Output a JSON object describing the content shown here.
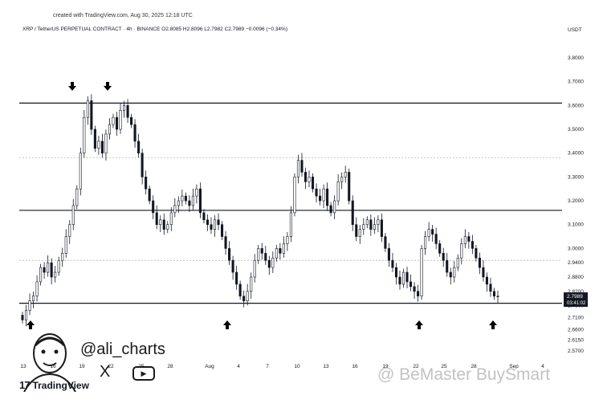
{
  "header": {
    "created": "created with TradingView.com, Aug 30, 2025 12:18 UTC",
    "symbol_line": "XRP / TetherUS PERPETUAL CONTRACT · 4h · BINANCE  O2.8085  H2.8096  L2.7982  C2.7989  −0.0096 (−0.34%)",
    "currency": "USDT"
  },
  "branding": {
    "logo_mark": "17",
    "logo_text": "TradingView",
    "handle": "@ali_charts",
    "x_label": "X",
    "watermark": "@ BeMaster BuySmart"
  },
  "colors": {
    "candle": "#131722",
    "grid": "#9a9a9a",
    "level": "#131722",
    "price_label_bg": "#131722"
  },
  "chart_data": {
    "type": "candlestick",
    "symbol": "XRP / TetherUS PERPETUAL CONTRACT",
    "interval": "4h",
    "exchange": "BINANCE",
    "ohlc_last": {
      "open": 2.8085,
      "high": 2.8096,
      "low": 2.7982,
      "close": 2.7989,
      "change": -0.0096,
      "change_pct": -0.34
    },
    "y_ticks": [
      3.8,
      3.7,
      3.6,
      3.5,
      3.4,
      3.3,
      3.2,
      3.1,
      3.0,
      2.94,
      2.88,
      2.82,
      2.76,
      2.71,
      2.66,
      2.615,
      2.57
    ],
    "y_tick_labels": [
      "3.8000",
      "3.7000",
      "3.6000",
      "3.5000",
      "3.4000",
      "3.3000",
      "3.2000",
      "3.1000",
      "3.0000",
      "2.9400",
      "2.8800",
      "2.8200",
      "2.7600",
      "2.7100",
      "2.6600",
      "2.6150",
      "2.5700"
    ],
    "x_tick_labels": [
      "13",
      "16",
      "19",
      "22",
      "25",
      "28",
      "Aug",
      "4",
      "7",
      "10",
      "13",
      "16",
      "19",
      "22",
      "25",
      "28",
      "Sep",
      "4"
    ],
    "last_price_label": "2.7989",
    "countdown_label": "03:41:02",
    "horizontal_levels": [
      {
        "price": 3.61,
        "style": "solid"
      },
      {
        "price": 3.38,
        "style": "dotted"
      },
      {
        "price": 3.16,
        "style": "solid"
      },
      {
        "price": 2.95,
        "style": "dotted"
      },
      {
        "price": 2.77,
        "style": "solid"
      }
    ],
    "markers": [
      {
        "x": "Jul 18",
        "direction": "down",
        "at": 3.66
      },
      {
        "x": "Jul 21",
        "direction": "down",
        "at": 3.66
      },
      {
        "x": "Jul 13",
        "direction": "up",
        "at": 2.74
      },
      {
        "x": "Aug 3",
        "direction": "up",
        "at": 2.74
      },
      {
        "x": "Aug 22",
        "direction": "up",
        "at": 2.74
      },
      {
        "x": "Aug 30",
        "direction": "up",
        "at": 2.74
      }
    ],
    "series_closes": [
      2.7,
      2.74,
      2.78,
      2.8,
      2.86,
      2.92,
      2.9,
      2.94,
      2.88,
      2.9,
      2.95,
      2.98,
      3.05,
      3.1,
      3.18,
      3.25,
      3.4,
      3.55,
      3.62,
      3.5,
      3.42,
      3.45,
      3.4,
      3.48,
      3.52,
      3.55,
      3.5,
      3.58,
      3.6,
      3.55,
      3.52,
      3.45,
      3.4,
      3.3,
      3.25,
      3.2,
      3.15,
      3.1,
      3.12,
      3.08,
      3.1,
      3.15,
      3.18,
      3.2,
      3.22,
      3.2,
      3.18,
      3.22,
      3.25,
      3.15,
      3.12,
      3.1,
      3.08,
      3.12,
      3.1,
      3.05,
      3.0,
      2.95,
      2.9,
      2.85,
      2.8,
      2.78,
      2.82,
      2.88,
      2.95,
      3.0,
      2.98,
      2.95,
      2.92,
      2.96,
      3.0,
      2.98,
      3.02,
      3.05,
      3.15,
      3.3,
      3.37,
      3.32,
      3.28,
      3.3,
      3.25,
      3.22,
      3.2,
      3.25,
      3.18,
      3.15,
      3.2,
      3.28,
      3.3,
      3.32,
      3.2,
      3.1,
      3.05,
      3.08,
      3.1,
      3.12,
      3.08,
      3.1,
      3.12,
      3.05,
      3.0,
      2.95,
      2.92,
      2.88,
      2.85,
      2.9,
      2.86,
      2.84,
      2.82,
      2.8,
      3.0,
      3.05,
      3.08,
      3.06,
      3.02,
      2.98,
      2.95,
      2.9,
      2.88,
      2.92,
      2.96,
      3.02,
      3.05,
      3.03,
      3.0,
      2.96,
      2.92,
      2.88,
      2.85,
      2.82,
      2.8,
      2.7989
    ]
  }
}
